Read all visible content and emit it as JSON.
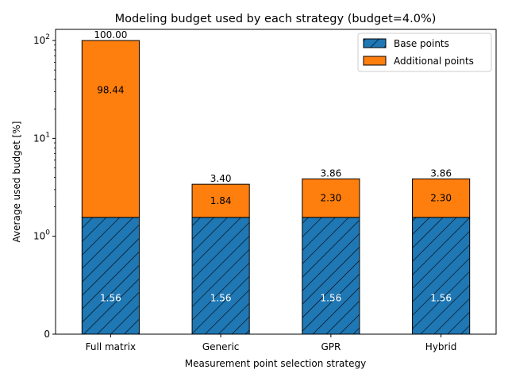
{
  "chart_data": {
    "type": "bar",
    "stacked": true,
    "title": "Modeling budget used by each strategy (budget=4.0%)",
    "xlabel": "Measurement point selection strategy",
    "ylabel": "Average used budget [%]",
    "yscale": "symlog",
    "ylim": [
      0,
      130
    ],
    "yticks": [
      {
        "value": 0,
        "label": "0"
      },
      {
        "value": 1,
        "label": "10",
        "exp": "0"
      },
      {
        "value": 10,
        "label": "10",
        "exp": "1"
      },
      {
        "value": 100,
        "label": "10",
        "exp": "2"
      }
    ],
    "categories": [
      "Full matrix",
      "Generic",
      "GPR",
      "Hybrid"
    ],
    "series": [
      {
        "name": "Base points",
        "color": "#1f77b4",
        "hatch": "diagonal",
        "values": [
          1.56,
          1.56,
          1.56,
          1.56
        ],
        "labels": [
          "1.56",
          "1.56",
          "1.56",
          "1.56"
        ]
      },
      {
        "name": "Additional points",
        "color": "#ff7f0e",
        "values": [
          98.44,
          1.84,
          2.3,
          2.3
        ],
        "labels": [
          "98.44",
          "1.84",
          "2.30",
          "2.30"
        ]
      }
    ],
    "totals": [
      "100.00",
      "3.40",
      "3.86",
      "3.86"
    ],
    "legend": "top-right",
    "grid": false
  }
}
